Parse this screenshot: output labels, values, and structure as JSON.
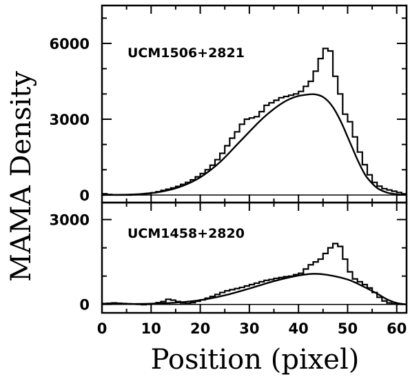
{
  "chart_data": [
    {
      "type": "line",
      "title": "UCM1506+2821",
      "xlabel": "Position (pixel)",
      "ylabel": "MAMA Density",
      "xlim": [
        0,
        62
      ],
      "ylim": [
        -300,
        7500
      ],
      "x_ticks": [
        0,
        10,
        20,
        30,
        40,
        50,
        60
      ],
      "y_ticks": [
        0,
        3000,
        6000
      ],
      "y_tick_labels": [
        "0",
        "3000",
        "6000"
      ],
      "series": [
        {
          "style": "histogram",
          "x": [
            0,
            1,
            2,
            3,
            4,
            5,
            6,
            7,
            8,
            9,
            10,
            11,
            12,
            13,
            14,
            15,
            16,
            17,
            18,
            19,
            20,
            21,
            22,
            23,
            24,
            25,
            26,
            27,
            28,
            29,
            30,
            31,
            32,
            33,
            34,
            35,
            36,
            37,
            38,
            39,
            40,
            41,
            42,
            43,
            44,
            45,
            46,
            47,
            48,
            49,
            50,
            51,
            52,
            53,
            54,
            55,
            56,
            57,
            58,
            59,
            60,
            61
          ],
          "y": [
            50,
            20,
            10,
            0,
            0,
            0,
            10,
            20,
            40,
            60,
            90,
            130,
            180,
            230,
            280,
            340,
            420,
            500,
            600,
            720,
            850,
            1000,
            1180,
            1400,
            1650,
            1950,
            2250,
            2500,
            2800,
            3000,
            3050,
            3100,
            3300,
            3550,
            3650,
            3750,
            3850,
            3900,
            3950,
            4000,
            4100,
            4300,
            4500,
            4900,
            5400,
            5800,
            5700,
            4700,
            4000,
            3200,
            2900,
            2300,
            1700,
            1200,
            800,
            500,
            350,
            250,
            200,
            150,
            100,
            50
          ]
        },
        {
          "style": "curve",
          "x": [
            0,
            4,
            8,
            12,
            16,
            20,
            24,
            28,
            32,
            34,
            36,
            38,
            40,
            42,
            43,
            44,
            45,
            46,
            47,
            48,
            49,
            50,
            51,
            52,
            53,
            54,
            56,
            58,
            60,
            62
          ],
          "y": [
            0,
            10,
            40,
            130,
            330,
            700,
            1300,
            2100,
            2900,
            3250,
            3550,
            3780,
            3920,
            3980,
            3990,
            3960,
            3880,
            3720,
            3480,
            3150,
            2750,
            2300,
            1850,
            1400,
            1000,
            680,
            280,
            100,
            30,
            0
          ]
        }
      ]
    },
    {
      "type": "line",
      "title": "UCM1458+2820",
      "xlabel": "Position (pixel)",
      "ylabel": "MAMA Density",
      "xlim": [
        0,
        62
      ],
      "ylim": [
        -300,
        3600
      ],
      "x_ticks": [
        0,
        10,
        20,
        30,
        40,
        50,
        60
      ],
      "x_tick_labels": [
        "0",
        "10",
        "20",
        "30",
        "40",
        "50",
        "60"
      ],
      "y_ticks": [
        0,
        3000
      ],
      "y_tick_labels": [
        "0",
        "3000"
      ],
      "series": [
        {
          "style": "histogram",
          "x": [
            0,
            1,
            2,
            3,
            4,
            5,
            6,
            7,
            8,
            9,
            10,
            11,
            12,
            13,
            14,
            15,
            16,
            17,
            18,
            19,
            20,
            21,
            22,
            23,
            24,
            25,
            26,
            27,
            28,
            29,
            30,
            31,
            32,
            33,
            34,
            35,
            36,
            37,
            38,
            39,
            40,
            41,
            42,
            43,
            44,
            45,
            46,
            47,
            48,
            49,
            50,
            51,
            52,
            53,
            54,
            55,
            56,
            57,
            58,
            59,
            60,
            61
          ],
          "y": [
            30,
            40,
            50,
            40,
            30,
            20,
            10,
            0,
            -10,
            0,
            20,
            60,
            100,
            180,
            150,
            100,
            50,
            30,
            60,
            110,
            160,
            220,
            280,
            350,
            420,
            480,
            520,
            560,
            600,
            650,
            700,
            750,
            800,
            850,
            880,
            920,
            950,
            980,
            1000,
            1050,
            1100,
            1250,
            1400,
            1500,
            1600,
            1800,
            2000,
            2150,
            2050,
            1600,
            1150,
            900,
            800,
            700,
            580,
            420,
            250,
            120,
            50,
            20,
            10,
            0
          ]
        },
        {
          "style": "curve",
          "x": [
            0,
            5,
            10,
            15,
            20,
            25,
            30,
            35,
            40,
            43,
            46,
            50,
            53,
            56,
            58,
            60,
            62
          ],
          "y": [
            10,
            15,
            25,
            60,
            150,
            320,
            560,
            820,
            1020,
            1080,
            1040,
            880,
            650,
            380,
            180,
            50,
            0
          ]
        }
      ]
    }
  ]
}
